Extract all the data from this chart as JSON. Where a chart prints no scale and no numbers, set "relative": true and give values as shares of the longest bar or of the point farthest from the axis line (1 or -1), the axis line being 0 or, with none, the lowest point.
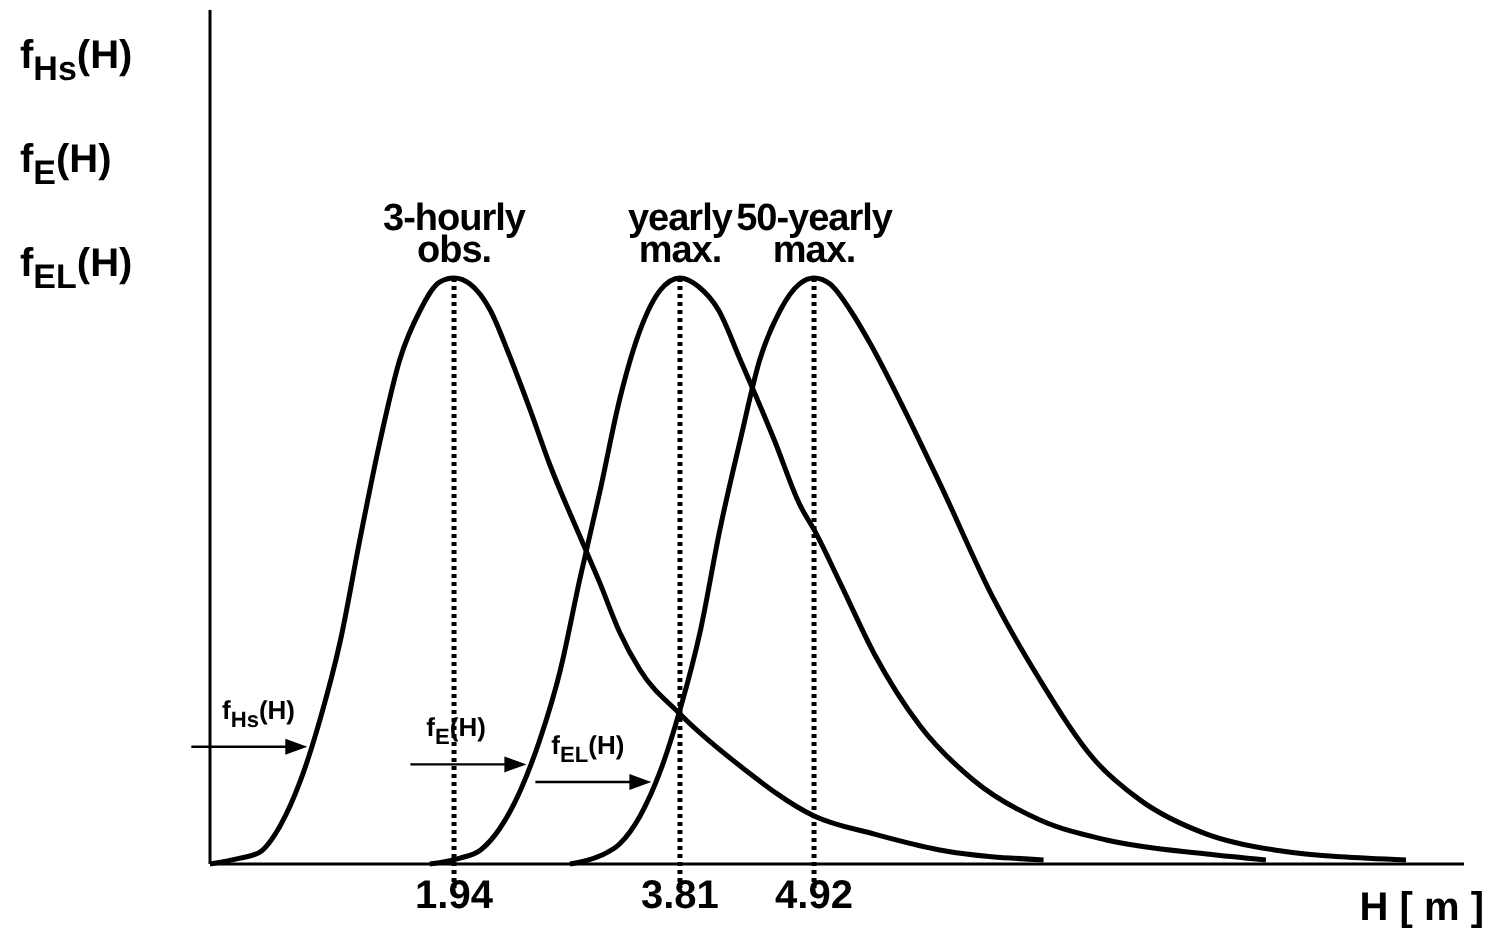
{
  "chart_data": {
    "type": "line",
    "relative": true,
    "xlabel": "H [ m ]",
    "ylabel": "f$_{Hs}$(H)\nf$_{E}$(H)\nf$_{EL}$(H)",
    "xlim": [
      -0.08,
      10.3
    ],
    "xticks": [
      1.94,
      3.81,
      4.92
    ],
    "line_style": "solid",
    "ref_lines": [
      {
        "axis": "x",
        "value": 1.94,
        "line_style": "dotted"
      },
      {
        "axis": "x",
        "value": 3.81,
        "line_style": "dotted"
      },
      {
        "axis": "x",
        "value": 4.92,
        "line_style": "dotted"
      }
    ],
    "annotations": [
      {
        "text": "3-hourly\nobs.",
        "x": 1.94,
        "y": 1
      },
      {
        "text": "yearly\nmax.",
        "x": 3.81,
        "y": 1
      },
      {
        "text": "50-yearly\nmax.",
        "x": 4.92,
        "y": 1
      }
    ],
    "series": [
      {
        "name": "f$_{Hs}$(H)",
        "color": "#000000",
        "x": [
          -0.08,
          0.17,
          0.33,
          0.5,
          0.67,
          0.83,
          1.0,
          1.16,
          1.33,
          1.49,
          1.66,
          1.82,
          1.94,
          2.07,
          2.24,
          2.4,
          2.57,
          2.73,
          2.98,
          3.15,
          3.31,
          3.48,
          3.81,
          4.31,
          4.92,
          5.42,
          5.96,
          6.82
        ],
        "values": [
          0,
          0.01,
          0.02,
          0.065,
          0.143,
          0.246,
          0.382,
          0.553,
          0.724,
          0.86,
          0.945,
          0.993,
          1,
          0.99,
          0.945,
          0.867,
          0.775,
          0.683,
          0.56,
          0.478,
          0.396,
          0.331,
          0.256,
          0.167,
          0.082,
          0.051,
          0.024,
          0.007
        ]
      },
      {
        "name": "f$_{E}$(H)",
        "color": "#000000",
        "x": [
          1.74,
          1.99,
          2.16,
          2.32,
          2.49,
          2.65,
          2.82,
          2.98,
          3.15,
          3.31,
          3.48,
          3.65,
          3.81,
          3.96,
          4.13,
          4.31,
          4.59,
          4.8,
          4.94,
          5.14,
          5.42,
          5.8,
          6.24,
          6.79,
          7.34,
          8.17,
          8.66
        ],
        "values": [
          0,
          0.01,
          0.024,
          0.061,
          0.126,
          0.212,
          0.331,
          0.485,
          0.638,
          0.792,
          0.911,
          0.98,
          1,
          0.986,
          0.945,
          0.86,
          0.724,
          0.614,
          0.563,
          0.478,
          0.358,
          0.235,
          0.143,
          0.075,
          0.041,
          0.017,
          0.007
        ]
      },
      {
        "name": "f$_{EL}$(H)",
        "color": "#000000",
        "x": [
          2.9,
          3.15,
          3.31,
          3.48,
          3.65,
          3.81,
          3.98,
          4.14,
          4.31,
          4.47,
          4.64,
          4.8,
          4.92,
          5.05,
          5.22,
          5.38,
          5.68,
          5.96,
          6.41,
          6.79,
          7.24,
          7.62,
          8.17,
          8.73,
          9.82
        ],
        "values": [
          0,
          0.014,
          0.034,
          0.082,
          0.16,
          0.263,
          0.399,
          0.57,
          0.724,
          0.86,
          0.945,
          0.99,
          1,
          0.99,
          0.945,
          0.89,
          0.77,
          0.65,
          0.451,
          0.314,
          0.178,
          0.109,
          0.051,
          0.024,
          0.007
        ]
      }
    ]
  }
}
